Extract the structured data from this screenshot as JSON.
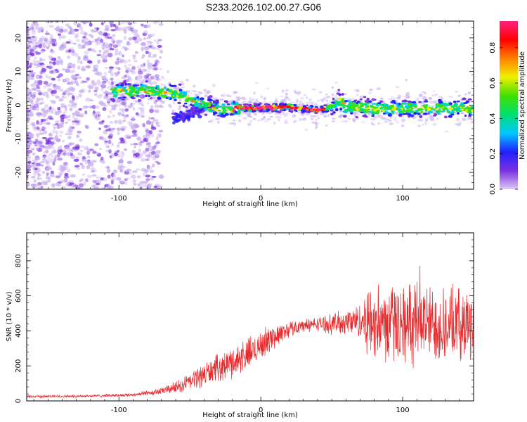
{
  "chart_data": [
    {
      "type": "heatmap",
      "title": "S233.2026.102.00.27.G06",
      "xlabel": "Height of straight line (km)",
      "ylabel": "Frequency (Hz)",
      "xlim": [
        -165,
        150
      ],
      "ylim": [
        -25,
        25
      ],
      "xticks": [
        -100,
        0,
        100
      ],
      "yticks": [
        -20,
        -10,
        0,
        10,
        20
      ],
      "xtick_labels": [
        "-100",
        "0",
        "100"
      ],
      "ytick_labels": [
        "-20",
        "-10",
        "0",
        "10",
        "20"
      ],
      "colorbar": {
        "label": "Normalized spectral amplitude",
        "range": [
          0,
          0.95
        ],
        "ticks": [
          "0.0",
          "0.2",
          "0.4",
          "0.6",
          "0.8"
        ],
        "colormap": [
          "#dcc8f5",
          "#7a30e0",
          "#2020ff",
          "#00c8ff",
          "#00e070",
          "#40e000",
          "#f0f000",
          "#ff8000",
          "#ff0000",
          "#ff2080"
        ]
      },
      "ridge": {
        "description_points_x": [
          -100,
          -80,
          -60,
          -40,
          -30,
          -20,
          0,
          20,
          40,
          50,
          55,
          60,
          80,
          100,
          120,
          145
        ],
        "description_points_freq": [
          4,
          4.5,
          3.5,
          0,
          -1,
          -1,
          -0.8,
          -0.5,
          -1.5,
          -0.5,
          1.5,
          -0.5,
          -1,
          -1,
          -0.8,
          -1
        ]
      }
    },
    {
      "type": "line",
      "title": "",
      "xlabel": "Height of straight line (km)",
      "ylabel": "SNR (10 * v/v)",
      "xlim": [
        -165,
        150
      ],
      "ylim": [
        0,
        960
      ],
      "xticks": [
        -100,
        0,
        100
      ],
      "yticks": [
        0,
        200,
        400,
        600,
        800
      ],
      "xtick_labels": [
        "-100",
        "0",
        "100"
      ],
      "ytick_labels": [
        "0",
        "200",
        "400",
        "600",
        "800"
      ],
      "series": [
        {
          "name": "SNR",
          "color": "#e8282a",
          "envelope_x": [
            -165,
            -120,
            -90,
            -70,
            -55,
            -40,
            -30,
            -20,
            -10,
            0,
            10,
            20,
            30,
            40,
            50,
            60,
            70,
            75,
            90,
            110,
            130,
            150
          ],
          "envelope_mean": [
            25,
            28,
            35,
            55,
            90,
            150,
            190,
            220,
            260,
            320,
            370,
            410,
            430,
            440,
            440,
            450,
            460,
            460,
            440,
            450,
            430,
            440
          ],
          "envelope_spread": [
            8,
            8,
            10,
            20,
            45,
            70,
            80,
            90,
            100,
            90,
            70,
            50,
            40,
            40,
            60,
            80,
            100,
            210,
            230,
            240,
            220,
            210
          ]
        }
      ]
    }
  ]
}
